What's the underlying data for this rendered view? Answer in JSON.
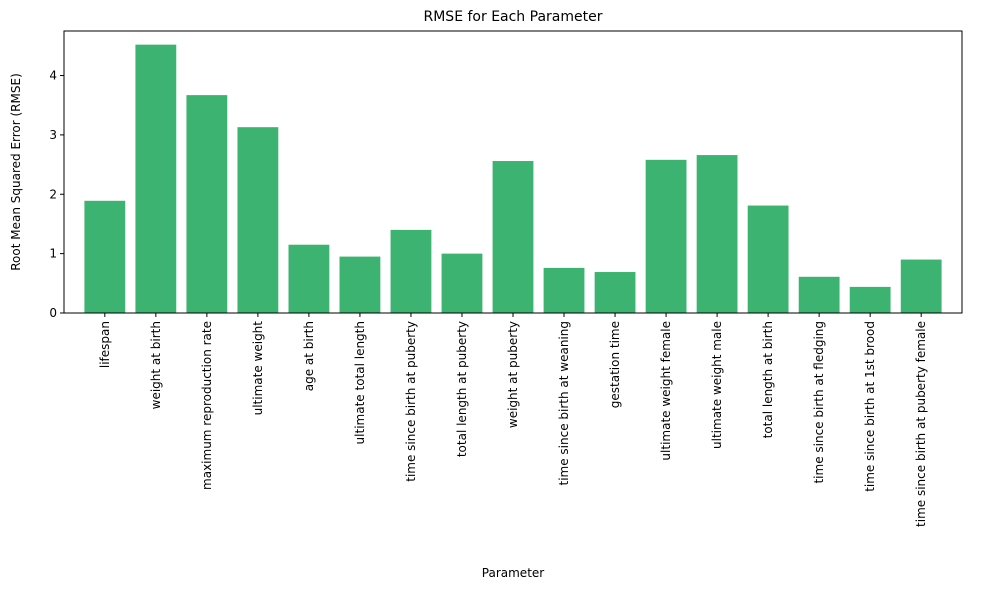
{
  "chart_data": {
    "type": "bar",
    "title": "RMSE for Each Parameter",
    "xlabel": "Parameter",
    "ylabel": "Root Mean Squared Error (RMSE)",
    "ylim": [
      0,
      4.75
    ],
    "yticks": [
      0,
      1,
      2,
      3,
      4
    ],
    "grid": false,
    "bar_color": "#3cb371",
    "categories": [
      "lifespan",
      "weight at birth",
      "maximum reproduction rate",
      "ultimate weight",
      "age at birth",
      "ultimate total length",
      "time since birth at puberty",
      "total length at puberty",
      "weight at puberty",
      "time since birth at weaning",
      "gestation time",
      "ultimate weight female",
      "ultimate weight male",
      "total length at birth",
      "time since birth at fledging",
      "time since birth at 1st brood",
      "time since birth at puberty female"
    ],
    "values": [
      1.89,
      4.52,
      3.67,
      3.13,
      1.15,
      0.95,
      1.4,
      1.0,
      2.56,
      0.76,
      0.69,
      2.58,
      2.66,
      1.81,
      0.61,
      0.44,
      0.9
    ]
  }
}
